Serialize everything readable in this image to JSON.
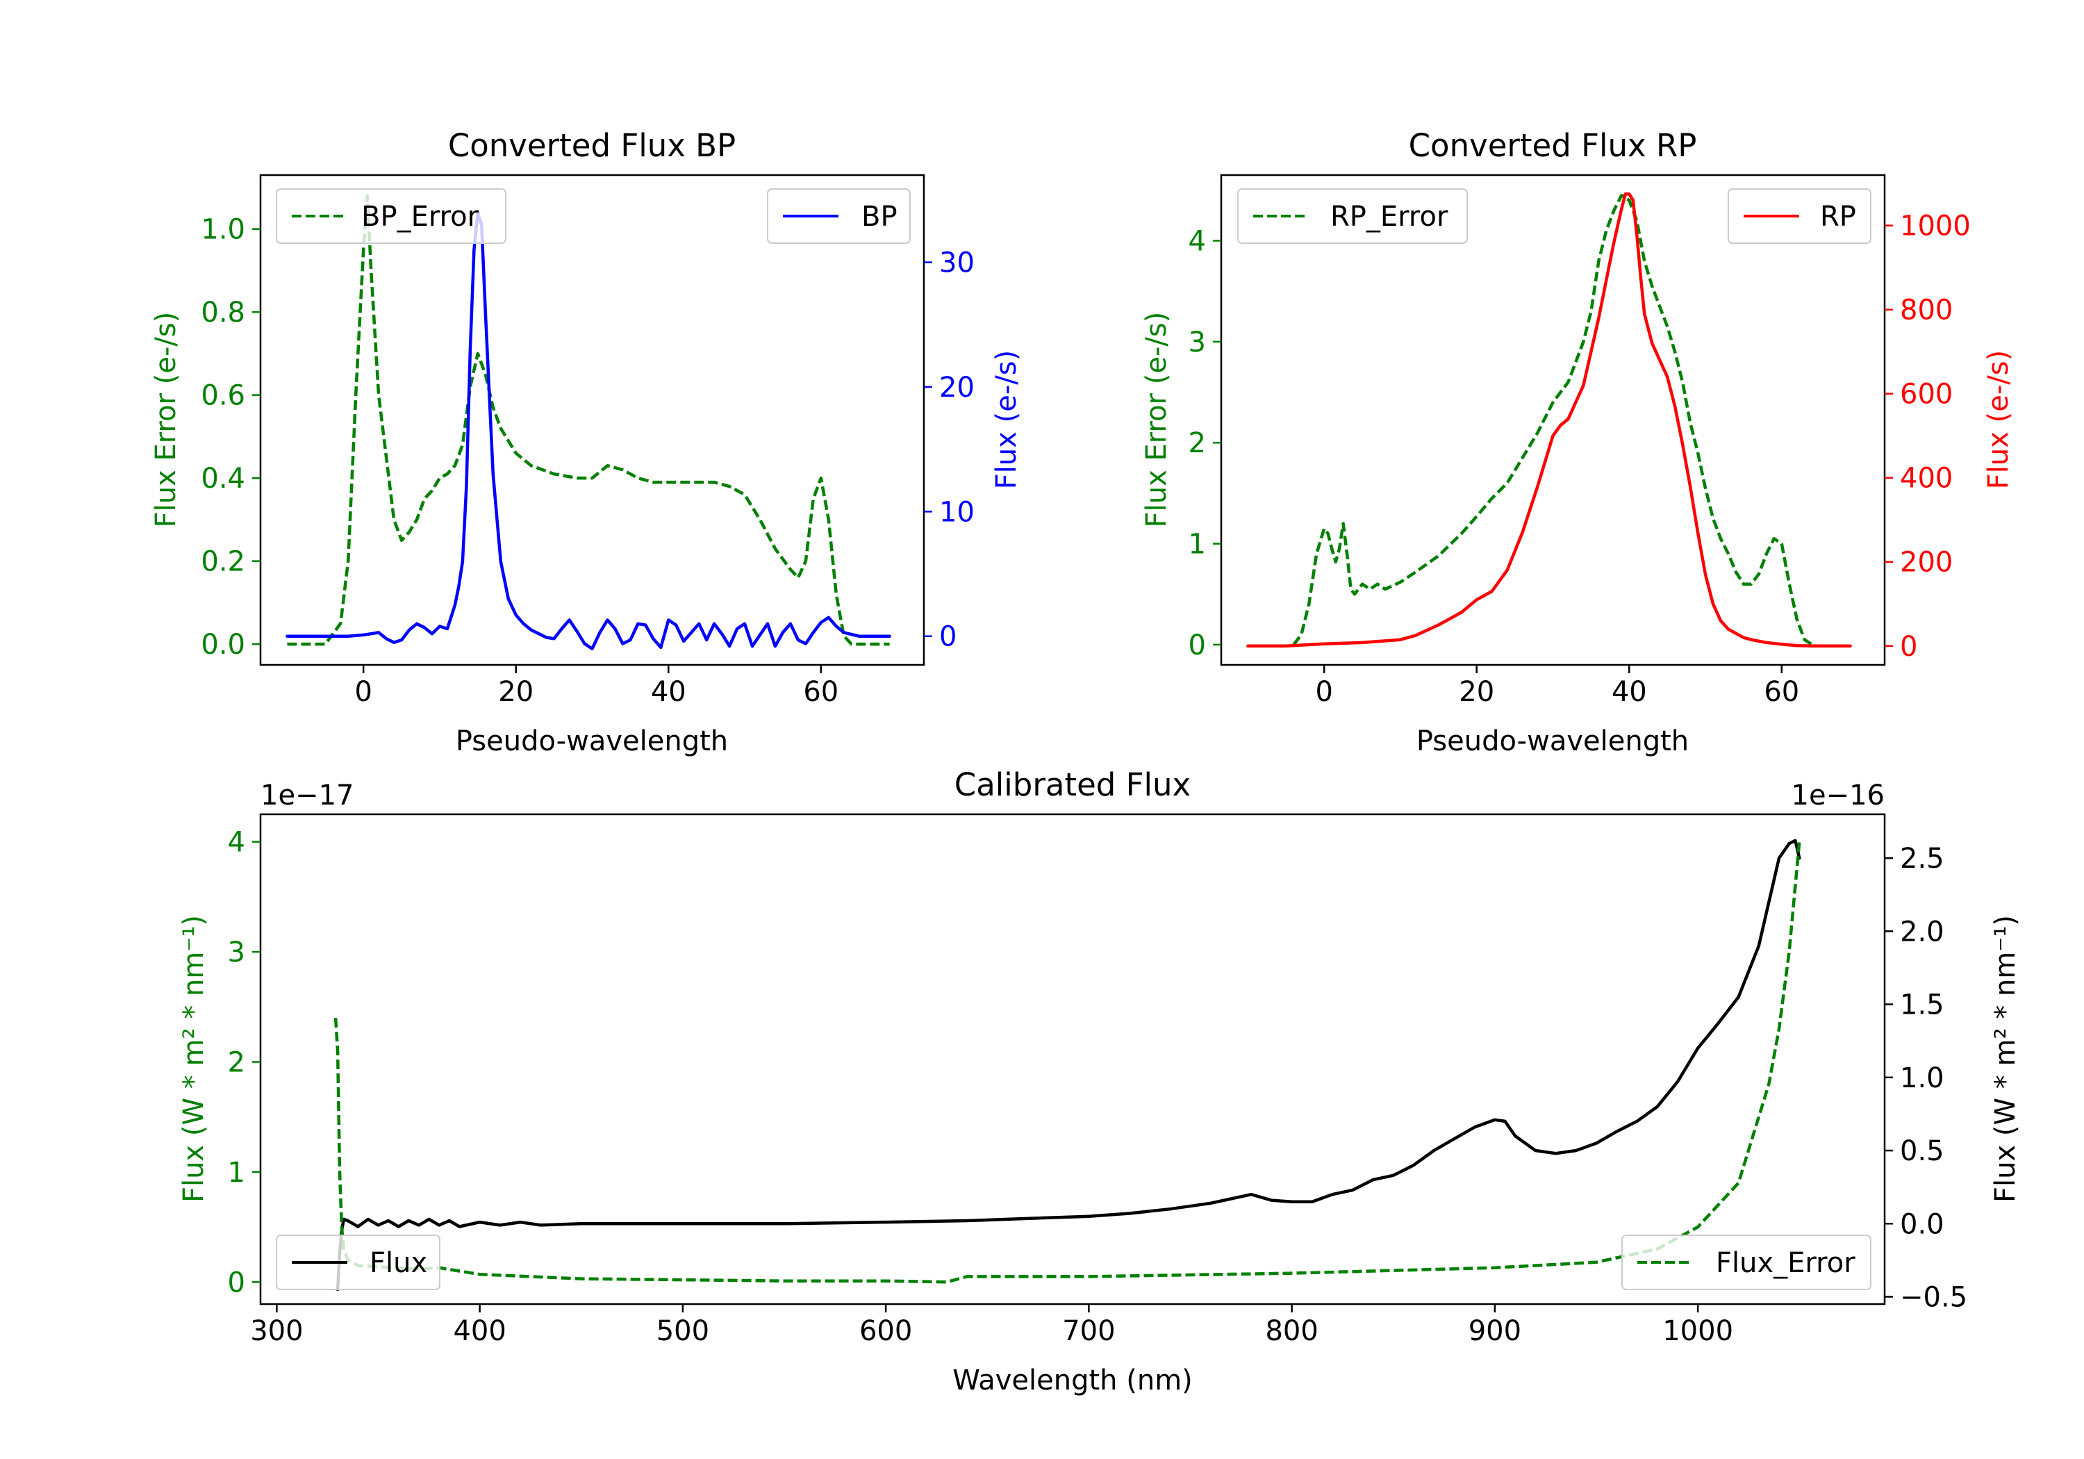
{
  "chart_data": [
    {
      "type": "line",
      "title": "Converted Flux BP",
      "xlabel": "Pseudo-wavelength",
      "ylabel_left": "Flux Error (e-/s)",
      "ylabel_right": "Flux (e-/s)",
      "xlim": [
        -13.5,
        73.5
      ],
      "ylim_left": [
        -0.05,
        1.13
      ],
      "ylim_right": [
        -2.3,
        37
      ],
      "xticks": [
        0,
        20,
        40,
        60
      ],
      "yticks_left": [
        0.0,
        0.2,
        0.4,
        0.6,
        0.8,
        1.0
      ],
      "ytick_labels_left": [
        "0.0",
        "0.2",
        "0.4",
        "0.6",
        "0.8",
        "1.0"
      ],
      "yticks_right": [
        0,
        10,
        20,
        30
      ],
      "legend_left": "BP_Error",
      "legend_right": "BP",
      "colors": {
        "error": "#008000",
        "flux": "#0000ff",
        "left_axis": "#008000",
        "right_axis": "#0000ff"
      },
      "series": [
        {
          "name": "BP_Error",
          "axis": "left",
          "style": "dashed",
          "color": "#008000",
          "x": [
            -10,
            -5,
            -3,
            -2,
            -1,
            0,
            0.5,
            1,
            2,
            3,
            4,
            5,
            6,
            7,
            8,
            9,
            10,
            11,
            12,
            13,
            14,
            15,
            16,
            17,
            18,
            20,
            22,
            25,
            28,
            30,
            32,
            34,
            36,
            38,
            40,
            42,
            44,
            46,
            48,
            50,
            52,
            54,
            56,
            57,
            58,
            59,
            60,
            61,
            62,
            63,
            64,
            66,
            69
          ],
          "y": [
            0,
            0,
            0.05,
            0.2,
            0.6,
            0.95,
            1.08,
            0.9,
            0.6,
            0.45,
            0.3,
            0.25,
            0.27,
            0.3,
            0.35,
            0.37,
            0.4,
            0.41,
            0.43,
            0.48,
            0.62,
            0.7,
            0.65,
            0.57,
            0.52,
            0.46,
            0.43,
            0.41,
            0.4,
            0.4,
            0.43,
            0.42,
            0.4,
            0.39,
            0.39,
            0.39,
            0.39,
            0.39,
            0.38,
            0.36,
            0.3,
            0.23,
            0.18,
            0.16,
            0.2,
            0.35,
            0.4,
            0.3,
            0.12,
            0.02,
            0,
            0,
            0
          ]
        },
        {
          "name": "BP",
          "axis": "right",
          "style": "solid",
          "color": "#0000ff",
          "x": [
            -10,
            -5,
            -2,
            0,
            1,
            2,
            3,
            4,
            5,
            6,
            7,
            8,
            9,
            10,
            11,
            12,
            12.5,
            13,
            13.5,
            14,
            14.5,
            15,
            15.5,
            16,
            17,
            18,
            19,
            20,
            21,
            22,
            23,
            24,
            25,
            26,
            27,
            28,
            29,
            30,
            31,
            32,
            33,
            34,
            35,
            36,
            37,
            38,
            39,
            40,
            41,
            42,
            43,
            44,
            45,
            46,
            47,
            48,
            49,
            50,
            51,
            52,
            53,
            54,
            55,
            56,
            57,
            58,
            59,
            60,
            61,
            62,
            63,
            65,
            69
          ],
          "y": [
            0,
            0,
            0,
            0.1,
            0.2,
            0.3,
            -0.2,
            -0.5,
            -0.3,
            0.5,
            1.0,
            0.7,
            0.2,
            0.8,
            0.6,
            2.5,
            4,
            6,
            12,
            23,
            31,
            34,
            33,
            26,
            13,
            6,
            3,
            1.7,
            1,
            0.5,
            0.2,
            -0.1,
            -0.2,
            0.6,
            1.3,
            0.4,
            -0.6,
            -1,
            0.3,
            1.3,
            0.6,
            -0.6,
            -0.3,
            1.0,
            0.9,
            -0.2,
            -0.9,
            1.3,
            0.9,
            -0.4,
            0.3,
            1.0,
            -0.3,
            1.0,
            0.2,
            -0.8,
            0.6,
            1.0,
            -0.8,
            0.1,
            1.0,
            -0.8,
            0.3,
            1.0,
            -0.3,
            -0.6,
            0.3,
            1.1,
            1.5,
            0.8,
            0.3,
            0,
            0
          ]
        }
      ]
    },
    {
      "type": "line",
      "title": "Converted Flux RP",
      "xlabel": "Pseudo-wavelength",
      "ylabel_left": "Flux Error (e-/s)",
      "ylabel_right": "Flux (e-/s)",
      "xlim": [
        -13.5,
        73.5
      ],
      "ylim_left": [
        -0.2,
        4.65
      ],
      "ylim_right": [
        -45,
        1120
      ],
      "xticks": [
        0,
        20,
        40,
        60
      ],
      "yticks_left": [
        0,
        1,
        2,
        3,
        4
      ],
      "yticks_right": [
        0,
        200,
        400,
        600,
        800,
        1000
      ],
      "legend_left": "RP_Error",
      "legend_right": "RP",
      "colors": {
        "error": "#008000",
        "flux": "#ff0000",
        "left_axis": "#008000",
        "right_axis": "#ff0000"
      },
      "series": [
        {
          "name": "RP_Error",
          "axis": "left",
          "style": "dashed",
          "color": "#008000",
          "x": [
            -4,
            -3,
            -2,
            -1,
            0,
            0.5,
            1,
            1.5,
            2,
            2.5,
            3,
            3.5,
            4,
            5,
            6,
            7,
            8,
            10,
            12,
            15,
            18,
            20,
            22,
            24,
            26,
            28,
            30,
            32,
            34,
            35,
            36,
            37,
            38,
            39,
            40,
            41,
            42,
            43,
            44,
            45,
            46,
            47,
            48,
            49,
            50,
            51,
            52,
            53,
            54,
            55,
            56,
            57,
            58,
            59,
            60,
            61,
            62,
            63,
            64
          ],
          "y": [
            0,
            0.1,
            0.4,
            0.9,
            1.15,
            1.1,
            0.95,
            0.82,
            0.95,
            1.2,
            0.9,
            0.55,
            0.5,
            0.6,
            0.55,
            0.6,
            0.55,
            0.62,
            0.72,
            0.88,
            1.1,
            1.27,
            1.45,
            1.6,
            1.85,
            2.1,
            2.4,
            2.6,
            3.0,
            3.3,
            3.8,
            4.1,
            4.3,
            4.45,
            4.4,
            4.2,
            3.8,
            3.55,
            3.35,
            3.15,
            2.9,
            2.6,
            2.2,
            1.9,
            1.55,
            1.25,
            1.05,
            0.9,
            0.72,
            0.6,
            0.6,
            0.7,
            0.9,
            1.05,
            1.0,
            0.6,
            0.25,
            0.05,
            0
          ]
        },
        {
          "name": "RP",
          "axis": "right",
          "style": "solid",
          "color": "#ff0000",
          "x": [
            -10,
            -5,
            0,
            5,
            10,
            12,
            15,
            18,
            20,
            22,
            24,
            26,
            28,
            29,
            30,
            31,
            32,
            34,
            35,
            36,
            37,
            38,
            39,
            39.5,
            40,
            40.5,
            41,
            41.5,
            42,
            43,
            44,
            45,
            46,
            47,
            48,
            49,
            50,
            51,
            52,
            53,
            54,
            55,
            56,
            58,
            60,
            62,
            64,
            69
          ],
          "y": [
            0,
            0,
            5,
            8,
            15,
            25,
            50,
            80,
            110,
            130,
            180,
            270,
            380,
            440,
            500,
            525,
            540,
            620,
            700,
            780,
            870,
            960,
            1040,
            1075,
            1075,
            1060,
            980,
            880,
            790,
            720,
            680,
            640,
            570,
            480,
            380,
            270,
            170,
            100,
            60,
            40,
            30,
            20,
            15,
            8,
            4,
            1,
            0,
            0
          ]
        }
      ]
    },
    {
      "type": "line",
      "title": "Calibrated Flux",
      "xlabel": "Wavelength (nm)",
      "ylabel_left": "Flux (W * m² * nm⁻¹)",
      "ylabel_right": "Flux (W * m² * nm⁻¹)",
      "xlim": [
        292,
        1092
      ],
      "ylim_left": [
        -0.2,
        4.25
      ],
      "ylim_right": [
        -0.55,
        2.8
      ],
      "xticks": [
        300,
        400,
        500,
        600,
        700,
        800,
        900,
        1000
      ],
      "yticks_left": [
        0,
        1,
        2,
        3,
        4
      ],
      "yticks_right": [
        -0.5,
        0.0,
        0.5,
        1.0,
        1.5,
        2.0,
        2.5
      ],
      "ytick_labels_right": [
        "−0.5",
        "0.0",
        "0.5",
        "1.0",
        "1.5",
        "2.0",
        "2.5"
      ],
      "offset_left": "1e−17",
      "offset_right": "1e−16",
      "legend_left": "Flux",
      "legend_right": "Flux_Error",
      "colors": {
        "flux": "#000000",
        "error": "#008000",
        "left_axis": "#008000",
        "right_axis": "#000000"
      },
      "series": [
        {
          "name": "Flux",
          "axis": "right",
          "style": "solid",
          "color": "#000000",
          "x": [
            330,
            331,
            332,
            333,
            335,
            340,
            345,
            350,
            355,
            360,
            365,
            370,
            375,
            380,
            385,
            390,
            400,
            410,
            420,
            430,
            450,
            500,
            550,
            600,
            640,
            660,
            680,
            700,
            720,
            740,
            760,
            770,
            780,
            790,
            800,
            810,
            820,
            830,
            840,
            850,
            860,
            870,
            880,
            890,
            900,
            905,
            910,
            920,
            930,
            940,
            950,
            960,
            970,
            980,
            990,
            1000,
            1010,
            1020,
            1030,
            1035,
            1040,
            1045,
            1048,
            1050
          ],
          "y": [
            -0.45,
            -0.2,
            -0.05,
            0.03,
            0.02,
            -0.02,
            0.03,
            -0.01,
            0.02,
            -0.02,
            0.02,
            -0.01,
            0.03,
            -0.01,
            0.02,
            -0.02,
            0.01,
            -0.01,
            0.01,
            -0.01,
            0.0,
            0.0,
            0.0,
            0.01,
            0.02,
            0.03,
            0.04,
            0.05,
            0.07,
            0.1,
            0.14,
            0.17,
            0.2,
            0.16,
            0.15,
            0.15,
            0.2,
            0.23,
            0.3,
            0.33,
            0.4,
            0.5,
            0.58,
            0.66,
            0.71,
            0.7,
            0.6,
            0.5,
            0.48,
            0.5,
            0.55,
            0.63,
            0.7,
            0.8,
            0.97,
            1.2,
            1.37,
            1.55,
            1.9,
            2.2,
            2.5,
            2.6,
            2.62,
            2.5
          ]
        },
        {
          "name": "Flux_Error",
          "axis": "left",
          "style": "dashed",
          "color": "#008000",
          "x": [
            329,
            330,
            331,
            332,
            333,
            335,
            340,
            350,
            360,
            370,
            380,
            390,
            400,
            450,
            500,
            550,
            600,
            630,
            640,
            700,
            800,
            900,
            950,
            980,
            1000,
            1010,
            1020,
            1025,
            1030,
            1035,
            1040,
            1045,
            1048,
            1050
          ],
          "y": [
            2.4,
            2.1,
            1.0,
            0.5,
            0.3,
            0.2,
            0.15,
            0.14,
            0.12,
            0.12,
            0.13,
            0.1,
            0.07,
            0.03,
            0.02,
            0.01,
            0.01,
            0.0,
            0.05,
            0.05,
            0.08,
            0.13,
            0.18,
            0.3,
            0.5,
            0.7,
            0.9,
            1.2,
            1.5,
            1.8,
            2.3,
            3.0,
            3.6,
            4.0
          ]
        }
      ]
    }
  ]
}
